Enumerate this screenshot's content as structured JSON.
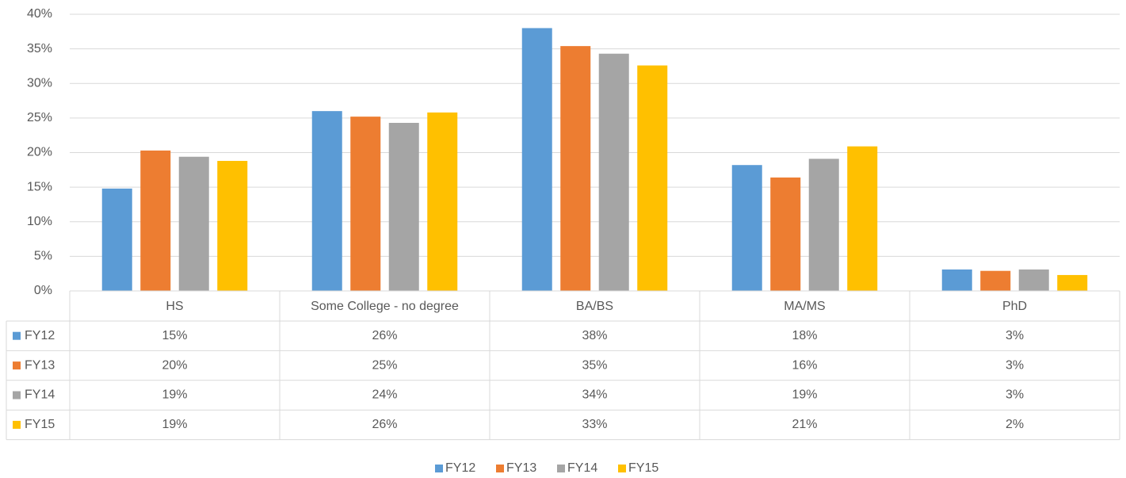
{
  "chart_data": {
    "type": "bar",
    "categories": [
      "HS",
      "Some College - no degree",
      "BA/BS",
      "MA/MS",
      "PhD"
    ],
    "series": [
      {
        "name": "FY12",
        "color": "#5b9bd5",
        "values": [
          14.8,
          26.0,
          38.0,
          18.2,
          3.1
        ],
        "value_labels": [
          "15%",
          "26%",
          "38%",
          "18%",
          "3%"
        ]
      },
      {
        "name": "FY13",
        "color": "#ed7d31",
        "values": [
          20.3,
          25.2,
          35.4,
          16.4,
          2.9
        ],
        "value_labels": [
          "20%",
          "25%",
          "35%",
          "16%",
          "3%"
        ]
      },
      {
        "name": "FY14",
        "color": "#a5a5a5",
        "values": [
          19.4,
          24.3,
          34.3,
          19.1,
          3.1
        ],
        "value_labels": [
          "19%",
          "24%",
          "34%",
          "19%",
          "3%"
        ]
      },
      {
        "name": "FY15",
        "color": "#ffc000",
        "values": [
          18.8,
          25.8,
          32.6,
          20.9,
          2.3
        ],
        "value_labels": [
          "19%",
          "26%",
          "33%",
          "21%",
          "2%"
        ]
      }
    ],
    "ylim": [
      0,
      40
    ],
    "yticks": [
      {
        "value": 0,
        "label": "0%"
      },
      {
        "value": 5,
        "label": "5%"
      },
      {
        "value": 10,
        "label": "10%"
      },
      {
        "value": 15,
        "label": "15%"
      },
      {
        "value": 20,
        "label": "20%"
      },
      {
        "value": 25,
        "label": "25%"
      },
      {
        "value": 30,
        "label": "30%"
      },
      {
        "value": 35,
        "label": "35%"
      },
      {
        "value": 40,
        "label": "40%"
      }
    ],
    "grid": true,
    "legend": "bottom"
  }
}
